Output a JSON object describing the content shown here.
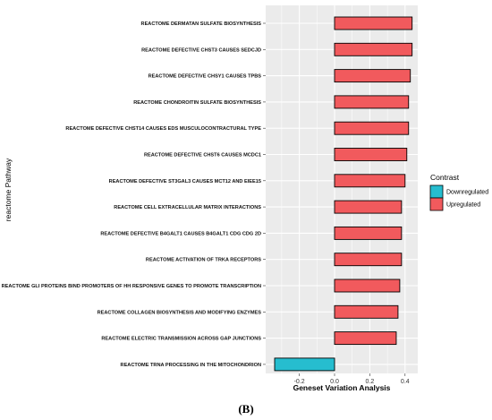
{
  "chart_data": {
    "type": "bar",
    "orientation": "horizontal",
    "categories": [
      "REACTOME DERMATAN SULFATE BIOSYNTHESIS",
      "REACTOME DEFECTIVE CHST3 CAUSES SEDCJD",
      "REACTOME DEFECTIVE CHSY1 CAUSES TPBS",
      "REACTOME CHONDROITIN SULFATE BIOSYNTHESIS",
      "REACTOME DEFECTIVE CHST14 CAUSES EDS MUSCULOCONTRACTURAL TYPE",
      "REACTOME DEFECTIVE CHST6 CAUSES MCDC1",
      "REACTOME DEFECTIVE ST3GAL3 CAUSES MCT12 AND EIEE15",
      "REACTOME CELL EXTRACELLULAR MATRIX INTERACTIONS",
      "REACTOME DEFECTIVE B4GALT1 CAUSES B4GALT1 CDG CDG 2D",
      "REACTOME ACTIVATION OF TRKA RECEPTORS",
      "REACTOME GLI PROTEINS BIND PROMOTERS OF HH RESPONSIVE GENES TO PROMOTE TRANSCRIPTION",
      "REACTOME COLLAGEN BIOSYNTHESIS AND MODIFYING ENZYMES",
      "REACTOME ELECTRIC TRANSMISSION ACROSS GAP JUNCTIONS",
      "REACTOME TRNA PROCESSING IN THE MITOCHONDRION"
    ],
    "values": [
      0.44,
      0.44,
      0.43,
      0.42,
      0.42,
      0.41,
      0.4,
      0.38,
      0.38,
      0.38,
      0.37,
      0.36,
      0.35,
      -0.34
    ],
    "groups": [
      "Upregulated",
      "Upregulated",
      "Upregulated",
      "Upregulated",
      "Upregulated",
      "Upregulated",
      "Upregulated",
      "Upregulated",
      "Upregulated",
      "Upregulated",
      "Upregulated",
      "Upregulated",
      "Upregulated",
      "Downregulated"
    ],
    "xlabel": "Geneset Variation Analysis",
    "ylabel": "reactome Pathway",
    "xlim": [
      -0.38,
      0.45
    ],
    "xticks": [
      -0.2,
      0.0,
      0.2,
      0.4
    ],
    "xtick_labels": [
      "-0.2",
      "0.0",
      "0.2",
      "0.4"
    ],
    "grid": true,
    "legend": {
      "title": "Contrast",
      "position": "right",
      "entries": [
        {
          "label": "Downregulated",
          "color": "#26BDCF"
        },
        {
          "label": "Upregulated",
          "color": "#F15A5D"
        }
      ]
    },
    "caption": "(B)"
  },
  "colors": {
    "panel_background": "#EBEBEB",
    "gridline": "#FFFFFF",
    "bar_outline": "#000000"
  }
}
